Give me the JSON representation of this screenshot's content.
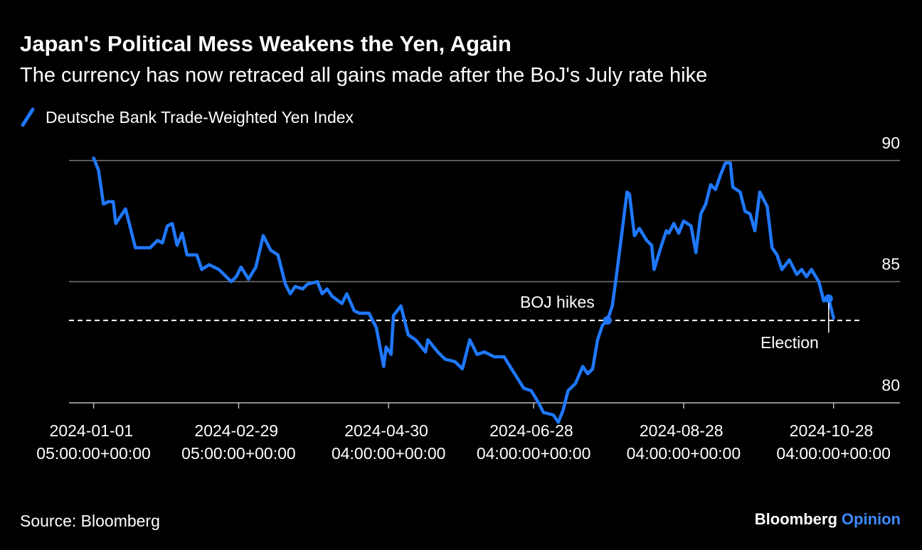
{
  "chart_data": {
    "type": "line",
    "title": "Japan's Political Mess Weakens the Yen, Again",
    "subtitle": "The currency has now retraced all gains made after the BoJ's July rate hike",
    "source": "Source: Bloomberg",
    "brand": "Bloomberg",
    "brand_suffix": "Opinion",
    "x": [
      "2024-01-01",
      "2024-01-03",
      "2024-01-05",
      "2024-01-07",
      "2024-01-09",
      "2024-01-10",
      "2024-01-14",
      "2024-01-18",
      "2024-01-21",
      "2024-01-24",
      "2024-01-27",
      "2024-01-29",
      "2024-01-31",
      "2024-02-02",
      "2024-02-04",
      "2024-02-06",
      "2024-02-08",
      "2024-02-12",
      "2024-02-14",
      "2024-02-17",
      "2024-02-21",
      "2024-02-24",
      "2024-02-26",
      "2024-02-28",
      "2024-03-01",
      "2024-03-04",
      "2024-03-07",
      "2024-03-10",
      "2024-03-13",
      "2024-03-16",
      "2024-03-19",
      "2024-03-21",
      "2024-03-23",
      "2024-03-26",
      "2024-03-28",
      "2024-04-01",
      "2024-04-03",
      "2024-04-05",
      "2024-04-07",
      "2024-04-11",
      "2024-04-13",
      "2024-04-16",
      "2024-04-18",
      "2024-04-22",
      "2024-04-25",
      "2024-04-28",
      "2024-04-29",
      "2024-05-01",
      "2024-05-02",
      "2024-05-05",
      "2024-05-08",
      "2024-05-11",
      "2024-05-15",
      "2024-05-16",
      "2024-05-20",
      "2024-05-23",
      "2024-05-27",
      "2024-05-30",
      "2024-06-02",
      "2024-06-05",
      "2024-06-08",
      "2024-06-12",
      "2024-06-16",
      "2024-06-19",
      "2024-06-24",
      "2024-06-27",
      "2024-06-30",
      "2024-07-02",
      "2024-07-06",
      "2024-07-08",
      "2024-07-10",
      "2024-07-12",
      "2024-07-15",
      "2024-07-18",
      "2024-07-20",
      "2024-07-22",
      "2024-07-24",
      "2024-07-26",
      "2024-07-28",
      "2024-07-30",
      "2024-08-01",
      "2024-08-05",
      "2024-08-06",
      "2024-08-08",
      "2024-08-10",
      "2024-08-13",
      "2024-08-15",
      "2024-08-16",
      "2024-08-19",
      "2024-08-21",
      "2024-08-22",
      "2024-08-24",
      "2024-08-26",
      "2024-08-28",
      "2024-08-31",
      "2024-09-02",
      "2024-09-04",
      "2024-09-06",
      "2024-09-08",
      "2024-09-10",
      "2024-09-12",
      "2024-09-14",
      "2024-09-16",
      "2024-09-17",
      "2024-09-20",
      "2024-09-22",
      "2024-09-24",
      "2024-09-26",
      "2024-09-28",
      "2024-10-01",
      "2024-10-03",
      "2024-10-05",
      "2024-10-07",
      "2024-10-10",
      "2024-10-13",
      "2024-10-15",
      "2024-10-17",
      "2024-10-19",
      "2024-10-22",
      "2024-10-24",
      "2024-10-26",
      "2024-10-28"
    ],
    "series": [
      {
        "name": "Deutsche Bank Trade-Weighted Yen Index",
        "color": "#1f78ff",
        "values": [
          90.1,
          89.6,
          88.2,
          88.3,
          88.3,
          87.4,
          88.0,
          86.4,
          86.4,
          86.4,
          86.7,
          86.6,
          87.3,
          87.4,
          86.5,
          87.0,
          86.1,
          86.1,
          85.5,
          85.7,
          85.5,
          85.2,
          85.0,
          85.2,
          85.6,
          85.1,
          85.6,
          86.9,
          86.3,
          86.1,
          84.9,
          84.5,
          84.8,
          84.7,
          84.9,
          85.0,
          84.5,
          84.7,
          84.4,
          84.1,
          84.5,
          83.8,
          83.7,
          83.7,
          83.1,
          81.5,
          82.3,
          82.0,
          83.6,
          84.0,
          82.8,
          82.6,
          82.1,
          82.6,
          82.1,
          81.8,
          81.7,
          81.4,
          82.6,
          82.0,
          82.1,
          81.9,
          81.9,
          81.4,
          80.6,
          80.5,
          80.0,
          79.6,
          79.5,
          79.2,
          79.7,
          80.5,
          80.8,
          81.5,
          81.2,
          81.4,
          82.6,
          83.2,
          83.4,
          84.0,
          85.5,
          88.7,
          88.6,
          86.9,
          87.2,
          86.7,
          86.5,
          85.5,
          86.5,
          87.1,
          87.0,
          87.4,
          87.0,
          87.5,
          87.3,
          86.2,
          87.8,
          88.2,
          89.0,
          88.8,
          89.4,
          89.9,
          89.9,
          88.9,
          88.7,
          87.9,
          87.8,
          87.1,
          88.7,
          88.1,
          86.4,
          86.1,
          85.5,
          85.9,
          85.3,
          85.5,
          85.2,
          85.5,
          85.0,
          84.2,
          84.3,
          83.5
        ]
      }
    ],
    "reference_line": 83.4,
    "annotations": [
      {
        "text": "BOJ hikes",
        "x": "2024-07-28",
        "y": 83.4
      },
      {
        "text": "Election",
        "x": "2024-10-26",
        "y": 84.3
      }
    ],
    "xlim": [
      "2023-12-22",
      "2024-11-24"
    ],
    "xticks": [
      {
        "value": "2024-01-01",
        "label": "2024-01-01 05:00:00+00:00"
      },
      {
        "value": "2024-02-29",
        "label": "2024-02-29 05:00:00+00:00"
      },
      {
        "value": "2024-04-30",
        "label": "2024-04-30 04:00:00+00:00"
      },
      {
        "value": "2024-06-28",
        "label": "2024-06-28 04:00:00+00:00"
      },
      {
        "value": "2024-08-28",
        "label": "2024-08-28 04:00:00+00:00"
      },
      {
        "value": "2024-10-28",
        "label": "2024-10-28 04:00:00+00:00"
      }
    ],
    "ylim": [
      79,
      90.2
    ],
    "yticks": [
      80,
      85,
      90
    ],
    "grid": true
  }
}
